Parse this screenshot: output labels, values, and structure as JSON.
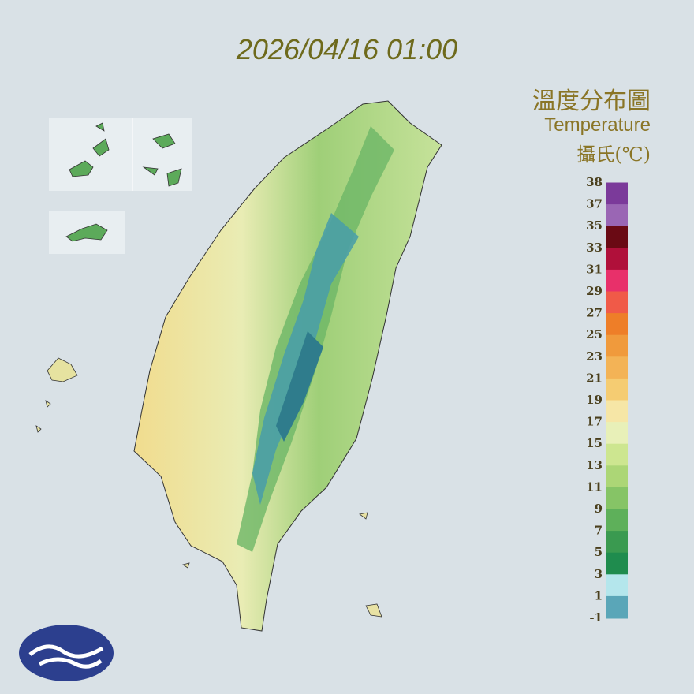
{
  "header": {
    "datetime": "2026/04/16 01:00",
    "title": "溫度分布圖",
    "subtitle": "Temperature",
    "unit": "攝氏(℃)"
  },
  "legend": {
    "labels": [
      38,
      37,
      35,
      33,
      31,
      29,
      27,
      25,
      23,
      21,
      19,
      17,
      15,
      13,
      11,
      9,
      7,
      5,
      3,
      1,
      -1
    ],
    "colors": [
      "#7b3a9a",
      "#9a66b4",
      "#6a0a14",
      "#b0103a",
      "#e8306a",
      "#f05a48",
      "#ee7e28",
      "#f09a3c",
      "#f3b356",
      "#f5cc72",
      "#f6e6a6",
      "#e8f0b8",
      "#cde690",
      "#acd676",
      "#86c466",
      "#5eb05a",
      "#3a9a50",
      "#1f8c4e",
      "#b4e6ec",
      "#5aa6b8"
    ]
  }
}
